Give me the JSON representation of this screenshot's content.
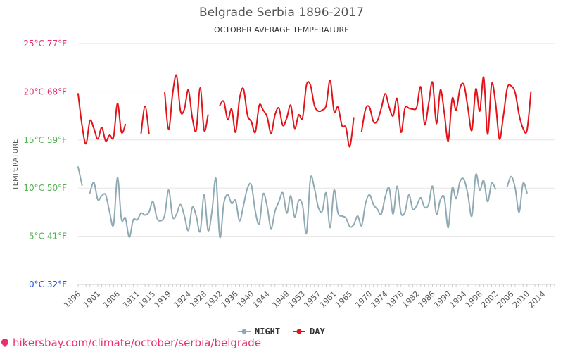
{
  "chart_data": {
    "type": "line",
    "title": "Belgrade Serbia 1896-2017",
    "subtitle": "OCTOBER AVERAGE TEMPERATURE",
    "ylabel": "TEMPERATURE",
    "ylim": [
      0,
      25
    ],
    "xlim": [
      1896,
      2017
    ],
    "y_ticks": [
      {
        "value": 0,
        "label": "0°C 32°F",
        "color": "#1f4fd0"
      },
      {
        "value": 5,
        "label": "5°C 41°F",
        "color": "#52b152"
      },
      {
        "value": 10,
        "label": "10°C 50°F",
        "color": "#52b152"
      },
      {
        "value": 15,
        "label": "15°C 59°F",
        "color": "#52b152"
      },
      {
        "value": 20,
        "label": "20°C 68°F",
        "color": "#e8306a"
      },
      {
        "value": 25,
        "label": "25°C 77°F",
        "color": "#e8306a"
      }
    ],
    "x_ticks": [
      {
        "value": 1896,
        "label": "1896"
      },
      {
        "value": 1901,
        "label": "1901"
      },
      {
        "value": 1906,
        "label": "1906"
      },
      {
        "value": 1911,
        "label": "1911"
      },
      {
        "value": 1915,
        "label": "1915"
      },
      {
        "value": 1919,
        "label": "1919"
      },
      {
        "value": 1924,
        "label": "1924"
      },
      {
        "value": 1928,
        "label": "1928"
      },
      {
        "value": 1932,
        "label": "1932"
      },
      {
        "value": 1936,
        "label": "1936"
      },
      {
        "value": 1940,
        "label": "1940"
      },
      {
        "value": 1944,
        "label": "1944"
      },
      {
        "value": 1949,
        "label": "1949"
      },
      {
        "value": 1953,
        "label": "1953"
      },
      {
        "value": 1957,
        "label": "1957"
      },
      {
        "value": 1961,
        "label": "1961"
      },
      {
        "value": 1965,
        "label": "1965"
      },
      {
        "value": 1970,
        "label": "1970"
      },
      {
        "value": 1974,
        "label": "1974"
      },
      {
        "value": 1978,
        "label": "1978"
      },
      {
        "value": 1982,
        "label": "1982"
      },
      {
        "value": 1986,
        "label": "1986"
      },
      {
        "value": 1990,
        "label": "1990"
      },
      {
        "value": 1994,
        "label": "1994"
      },
      {
        "value": 1998,
        "label": "1998"
      },
      {
        "value": 2002,
        "label": "2002"
      },
      {
        "value": 2006,
        "label": "2006"
      },
      {
        "value": 2010,
        "label": "2010"
      },
      {
        "value": 2014,
        "label": "2014"
      }
    ],
    "grid": true,
    "legend_position": "bottom-center",
    "series": [
      {
        "name": "NIGHT",
        "color": "#90aab4",
        "segments": [
          [
            [
              1896,
              12.2
            ],
            [
              1897,
              10.3
            ]
          ],
          [
            [
              1899,
              9.5
            ],
            [
              1900,
              10.6
            ],
            [
              1901,
              8.8
            ],
            [
              1902,
              9.2
            ],
            [
              1903,
              9.3
            ],
            [
              1904,
              7.5
            ],
            [
              1905,
              6.2
            ],
            [
              1906,
              11.1
            ],
            [
              1907,
              6.8
            ],
            [
              1908,
              6.9
            ],
            [
              1909,
              4.9
            ],
            [
              1910,
              6.7
            ],
            [
              1911,
              6.7
            ],
            [
              1912,
              7.4
            ],
            [
              1913,
              7.2
            ],
            [
              1914,
              7.5
            ],
            [
              1915,
              8.6
            ],
            [
              1916,
              6.9
            ],
            [
              1917,
              6.6
            ],
            [
              1918,
              7.2
            ],
            [
              1919,
              9.8
            ],
            [
              1920,
              7.0
            ],
            [
              1921,
              7.3
            ],
            [
              1922,
              8.3
            ],
            [
              1923,
              7.1
            ],
            [
              1924,
              5.6
            ],
            [
              1925,
              8.0
            ],
            [
              1926,
              7.1
            ],
            [
              1927,
              5.5
            ],
            [
              1928,
              9.3
            ],
            [
              1929,
              5.6
            ],
            [
              1930,
              7.6
            ],
            [
              1931,
              11.0
            ],
            [
              1932,
              4.9
            ],
            [
              1933,
              8.4
            ],
            [
              1934,
              9.3
            ],
            [
              1935,
              8.4
            ],
            [
              1936,
              8.7
            ],
            [
              1937,
              6.6
            ],
            [
              1938,
              8.2
            ],
            [
              1939,
              10.0
            ],
            [
              1940,
              10.3
            ],
            [
              1941,
              7.6
            ],
            [
              1942,
              6.3
            ],
            [
              1943,
              9.4
            ],
            [
              1944,
              8.1
            ],
            [
              1945,
              5.8
            ],
            [
              1946,
              7.6
            ],
            [
              1947,
              8.6
            ],
            [
              1948,
              9.5
            ],
            [
              1949,
              7.4
            ],
            [
              1950,
              9.2
            ],
            [
              1951,
              7.0
            ],
            [
              1952,
              8.7
            ],
            [
              1953,
              8.2
            ],
            [
              1954,
              5.3
            ],
            [
              1955,
              11.0
            ],
            [
              1956,
              10.0
            ],
            [
              1957,
              8.0
            ],
            [
              1958,
              7.6
            ],
            [
              1959,
              9.5
            ],
            [
              1960,
              5.9
            ],
            [
              1961,
              9.8
            ],
            [
              1962,
              7.4
            ],
            [
              1963,
              7.1
            ],
            [
              1964,
              6.9
            ],
            [
              1965,
              6.0
            ],
            [
              1966,
              6.2
            ],
            [
              1967,
              7.1
            ],
            [
              1968,
              6.1
            ],
            [
              1969,
              8.4
            ],
            [
              1970,
              9.3
            ],
            [
              1971,
              8.3
            ],
            [
              1972,
              7.8
            ],
            [
              1973,
              7.3
            ],
            [
              1974,
              9.1
            ],
            [
              1975,
              10.0
            ],
            [
              1976,
              7.3
            ],
            [
              1977,
              10.2
            ],
            [
              1978,
              7.4
            ],
            [
              1979,
              7.5
            ],
            [
              1980,
              9.3
            ],
            [
              1981,
              7.8
            ],
            [
              1982,
              8.2
            ],
            [
              1983,
              9.0
            ],
            [
              1984,
              8.0
            ],
            [
              1985,
              8.3
            ],
            [
              1986,
              10.2
            ],
            [
              1987,
              7.3
            ],
            [
              1988,
              8.8
            ],
            [
              1989,
              9.0
            ],
            [
              1990,
              5.9
            ],
            [
              1991,
              10.0
            ],
            [
              1992,
              8.9
            ],
            [
              1993,
              10.7
            ],
            [
              1994,
              10.9
            ],
            [
              1995,
              9.3
            ],
            [
              1996,
              7.1
            ],
            [
              1997,
              11.4
            ],
            [
              1998,
              9.8
            ],
            [
              1999,
              10.8
            ],
            [
              2000,
              8.6
            ],
            [
              2001,
              10.5
            ],
            [
              2002,
              9.9
            ]
          ],
          [
            [
              2005,
              10.2
            ],
            [
              2006,
              11.2
            ],
            [
              2007,
              10.0
            ],
            [
              2008,
              7.5
            ],
            [
              2009,
              10.5
            ],
            [
              2010,
              9.5
            ]
          ]
        ]
      },
      {
        "name": "DAY",
        "color": "#e2141a",
        "segments": [
          [
            [
              1896,
              19.8
            ],
            [
              1897,
              16.5
            ],
            [
              1898,
              14.6
            ],
            [
              1899,
              17.0
            ],
            [
              1900,
              16.2
            ],
            [
              1901,
              15.1
            ],
            [
              1902,
              16.3
            ],
            [
              1903,
              14.9
            ],
            [
              1904,
              15.5
            ],
            [
              1905,
              15.3
            ],
            [
              1906,
              18.8
            ],
            [
              1907,
              15.8
            ],
            [
              1908,
              16.6
            ]
          ],
          [
            [
              1912,
              15.7
            ],
            [
              1913,
              18.5
            ],
            [
              1914,
              15.7
            ]
          ],
          [
            [
              1918,
              19.9
            ],
            [
              1919,
              16.1
            ],
            [
              1920,
              19.8
            ],
            [
              1921,
              21.7
            ],
            [
              1922,
              18.0
            ],
            [
              1923,
              18.2
            ],
            [
              1924,
              20.2
            ],
            [
              1925,
              17.3
            ],
            [
              1926,
              16.0
            ],
            [
              1927,
              20.4
            ],
            [
              1928,
              16.0
            ],
            [
              1929,
              17.6
            ]
          ],
          [
            [
              1932,
              18.6
            ],
            [
              1933,
              19.0
            ],
            [
              1934,
              17.1
            ],
            [
              1935,
              18.2
            ],
            [
              1936,
              15.8
            ],
            [
              1937,
              19.3
            ],
            [
              1938,
              20.3
            ],
            [
              1939,
              17.6
            ],
            [
              1940,
              16.9
            ],
            [
              1941,
              15.8
            ],
            [
              1942,
              18.6
            ],
            [
              1943,
              18.1
            ],
            [
              1944,
              17.4
            ],
            [
              1945,
              15.7
            ],
            [
              1946,
              17.6
            ],
            [
              1947,
              18.3
            ],
            [
              1948,
              16.5
            ],
            [
              1949,
              17.3
            ],
            [
              1950,
              18.6
            ],
            [
              1951,
              16.2
            ],
            [
              1952,
              17.6
            ],
            [
              1953,
              17.3
            ],
            [
              1954,
              20.7
            ],
            [
              1955,
              20.7
            ],
            [
              1956,
              18.6
            ],
            [
              1957,
              18.0
            ],
            [
              1958,
              18.1
            ],
            [
              1959,
              18.6
            ],
            [
              1960,
              21.2
            ],
            [
              1961,
              18.0
            ],
            [
              1962,
              18.4
            ],
            [
              1963,
              16.5
            ],
            [
              1964,
              16.3
            ],
            [
              1965,
              14.3
            ],
            [
              1966,
              17.3
            ]
          ],
          [
            [
              1968,
              15.9
            ],
            [
              1969,
              18.2
            ],
            [
              1970,
              18.4
            ],
            [
              1971,
              16.9
            ],
            [
              1972,
              17.0
            ],
            [
              1973,
              18.3
            ],
            [
              1974,
              19.8
            ],
            [
              1975,
              18.4
            ],
            [
              1976,
              17.5
            ],
            [
              1977,
              19.3
            ],
            [
              1978,
              15.8
            ],
            [
              1979,
              18.3
            ],
            [
              1980,
              18.3
            ],
            [
              1981,
              18.2
            ],
            [
              1982,
              18.4
            ],
            [
              1983,
              20.5
            ],
            [
              1984,
              16.6
            ],
            [
              1985,
              18.7
            ],
            [
              1986,
              21.0
            ],
            [
              1987,
              16.7
            ],
            [
              1988,
              20.2
            ],
            [
              1989,
              17.8
            ],
            [
              1990,
              14.9
            ],
            [
              1991,
              19.3
            ],
            [
              1992,
              18.1
            ],
            [
              1993,
              20.4
            ],
            [
              1994,
              20.7
            ],
            [
              1995,
              18.3
            ],
            [
              1996,
              16.0
            ],
            [
              1997,
              20.3
            ],
            [
              1998,
              18.0
            ],
            [
              1999,
              21.5
            ],
            [
              2000,
              15.6
            ],
            [
              2001,
              20.8
            ],
            [
              2002,
              18.9
            ],
            [
              2003,
              15.1
            ],
            [
              2004,
              17.5
            ],
            [
              2005,
              20.4
            ],
            [
              2006,
              20.6
            ],
            [
              2007,
              19.9
            ],
            [
              2008,
              17.6
            ],
            [
              2009,
              16.2
            ],
            [
              2010,
              16.0
            ],
            [
              2011,
              20.0
            ]
          ]
        ]
      }
    ]
  },
  "footer": {
    "text": "hikersbay.com/climate/october/serbia/belgrade"
  }
}
